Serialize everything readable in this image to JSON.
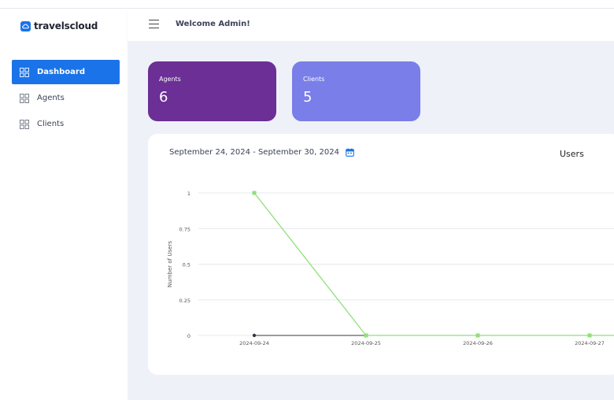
{
  "brand": {
    "name": "travelscloud",
    "icon": "cloud-logo-icon"
  },
  "header": {
    "welcome": "Welcome Admin!",
    "menu_icon": "hamburger-icon"
  },
  "sidebar": {
    "items": [
      {
        "label": "Dashboard",
        "icon": "grid-icon",
        "active": true
      },
      {
        "label": "Agents",
        "icon": "grid-icon",
        "active": false
      },
      {
        "label": "Clients",
        "icon": "grid-icon",
        "active": false
      }
    ]
  },
  "cards": {
    "agents": {
      "label": "Agents",
      "value": "6",
      "color": "#6b2f95"
    },
    "clients": {
      "label": "Clients",
      "value": "5",
      "color": "#7a7ee8"
    }
  },
  "chart_panel": {
    "date_range": "September 24, 2024 - September 30, 2024",
    "calendar_icon": "calendar-icon"
  },
  "chart_data": {
    "type": "line",
    "title": "Users",
    "ylabel": "Number of Users",
    "xlabel": "",
    "x": [
      "2024-09-24",
      "2024-09-25",
      "2024-09-26",
      "2024-09-27"
    ],
    "yticks": [
      "1",
      "0.75",
      "0.5",
      "0.25",
      "0"
    ],
    "ylim": [
      0,
      1
    ],
    "grid": true,
    "series": [
      {
        "values": [
          0,
          0,
          0,
          0
        ],
        "color": "#2d3a4f",
        "marker": "circle"
      },
      {
        "values": [
          1,
          0,
          0,
          0
        ],
        "color": "#8fe07a",
        "marker": "square"
      }
    ]
  }
}
